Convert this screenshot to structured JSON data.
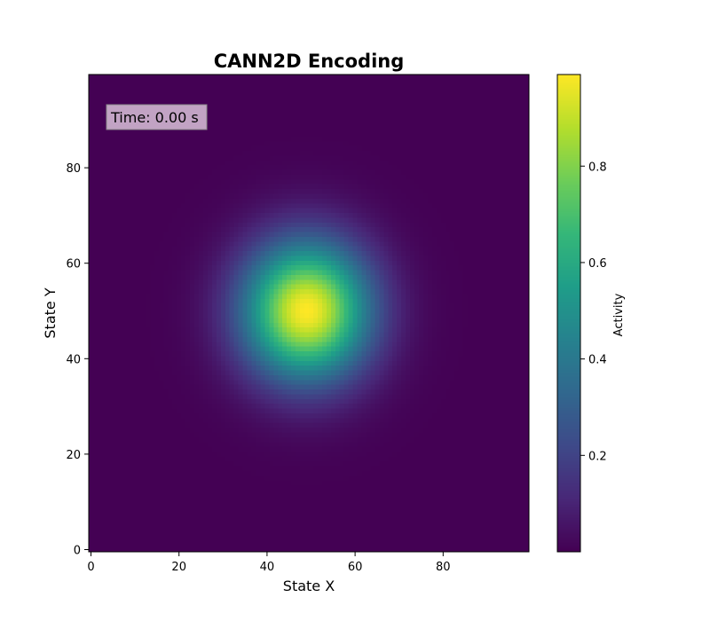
{
  "chart_data": {
    "type": "heatmap",
    "title": "CANN2D Encoding",
    "xlabel": "State X",
    "ylabel": "State Y",
    "xlim": [
      0,
      100
    ],
    "ylim": [
      0,
      100
    ],
    "xticks": [
      0,
      20,
      40,
      60,
      80
    ],
    "yticks": [
      0,
      20,
      40,
      60,
      80
    ],
    "grid_size": [
      100,
      100
    ],
    "bump": {
      "center_x": 49,
      "center_y": 50,
      "sigma": 10,
      "peak": 0.99,
      "baseline": 0
    },
    "colormap": "viridis",
    "colorbar": {
      "label": "Activity",
      "range": [
        0,
        0.99
      ],
      "ticks": [
        0.2,
        0.4,
        0.6,
        0.8
      ]
    },
    "annotation": {
      "text": "Time: 0.00 s",
      "position": "top-left",
      "box_color": "#d8bfd8"
    },
    "grid": false,
    "legend": "none"
  }
}
